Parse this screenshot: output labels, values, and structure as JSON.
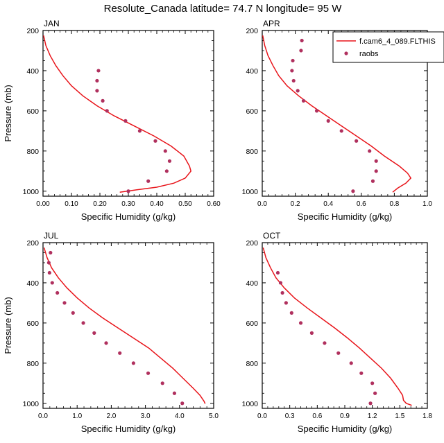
{
  "figure": {
    "title": "Resolute_Canada  latitude= 74.7 N longitude= 95 W"
  },
  "chart_data": [
    {
      "type": "line",
      "panel_label": "JAN",
      "xlabel": "Specific Humidity (g/kg)",
      "ylabel": "Pressure (mb)",
      "xlim": [
        0,
        0.6
      ],
      "ylim": [
        200,
        1025
      ],
      "y_inverted": true,
      "xticks": [
        "0.00",
        "0.10",
        "0.20",
        "0.30",
        "0.40",
        "0.50",
        "0.60"
      ],
      "yticks": [
        "200",
        "400",
        "600",
        "800",
        "1000"
      ],
      "legend": null,
      "series": [
        {
          "name": "f.cam6_4_089.FLTHIST",
          "kind": "line",
          "color": "#e8141a",
          "points": [
            [
              0.002,
              225
            ],
            [
              0.01,
              275
            ],
            [
              0.025,
              325
            ],
            [
              0.045,
              375
            ],
            [
              0.07,
              425
            ],
            [
              0.1,
              475
            ],
            [
              0.14,
              525
            ],
            [
              0.19,
              575
            ],
            [
              0.25,
              625
            ],
            [
              0.32,
              675
            ],
            [
              0.39,
              725
            ],
            [
              0.45,
              775
            ],
            [
              0.495,
              825
            ],
            [
              0.515,
              875
            ],
            [
              0.52,
              900
            ],
            [
              0.5,
              935
            ],
            [
              0.46,
              960
            ],
            [
              0.4,
              980
            ],
            [
              0.33,
              993
            ],
            [
              0.27,
              1005
            ]
          ]
        },
        {
          "name": "raobs",
          "kind": "scatter",
          "color": "#b0305e",
          "points": [
            [
              0.195,
              400
            ],
            [
              0.19,
              450
            ],
            [
              0.19,
              500
            ],
            [
              0.21,
              550
            ],
            [
              0.225,
              600
            ],
            [
              0.29,
              650
            ],
            [
              0.34,
              700
            ],
            [
              0.395,
              750
            ],
            [
              0.43,
              800
            ],
            [
              0.445,
              850
            ],
            [
              0.435,
              900
            ],
            [
              0.37,
              950
            ],
            [
              0.3,
              1000
            ]
          ]
        }
      ]
    },
    {
      "type": "line",
      "panel_label": "APR",
      "xlabel": "Specific Humidity (g/kg)",
      "ylabel": "",
      "xlim": [
        0,
        1.0
      ],
      "ylim": [
        200,
        1025
      ],
      "y_inverted": true,
      "xticks": [
        "0.0",
        "0.2",
        "0.4",
        "0.6",
        "0.8",
        "1.0"
      ],
      "yticks": [
        "200",
        "400",
        "600",
        "800",
        "1000"
      ],
      "legend": {
        "entries": [
          "f.cam6_4_089.FLTHIS",
          "raobs"
        ]
      },
      "series": [
        {
          "name": "f.cam6_4_089.FLTHIST",
          "kind": "line",
          "color": "#e8141a",
          "points": [
            [
              0.003,
              225
            ],
            [
              0.015,
              275
            ],
            [
              0.035,
              325
            ],
            [
              0.065,
              375
            ],
            [
              0.1,
              425
            ],
            [
              0.15,
              475
            ],
            [
              0.22,
              525
            ],
            [
              0.3,
              575
            ],
            [
              0.39,
              625
            ],
            [
              0.48,
              675
            ],
            [
              0.57,
              725
            ],
            [
              0.66,
              775
            ],
            [
              0.74,
              825
            ],
            [
              0.83,
              875
            ],
            [
              0.88,
              910
            ],
            [
              0.9,
              935
            ],
            [
              0.87,
              960
            ],
            [
              0.82,
              985
            ],
            [
              0.79,
              1005
            ]
          ]
        },
        {
          "name": "raobs",
          "kind": "scatter",
          "color": "#b0305e",
          "points": [
            [
              0.24,
              250
            ],
            [
              0.235,
              300
            ],
            [
              0.185,
              350
            ],
            [
              0.18,
              400
            ],
            [
              0.19,
              450
            ],
            [
              0.215,
              500
            ],
            [
              0.25,
              550
            ],
            [
              0.33,
              600
            ],
            [
              0.4,
              650
            ],
            [
              0.48,
              700
            ],
            [
              0.57,
              750
            ],
            [
              0.65,
              800
            ],
            [
              0.69,
              850
            ],
            [
              0.69,
              900
            ],
            [
              0.67,
              950
            ],
            [
              0.55,
              1000
            ]
          ]
        }
      ]
    },
    {
      "type": "line",
      "panel_label": "JUL",
      "xlabel": "Specific Humidity (g/kg)",
      "ylabel": "Pressure (mb)",
      "xlim": [
        0,
        5.0
      ],
      "ylim": [
        200,
        1025
      ],
      "y_inverted": true,
      "xticks": [
        "0.0",
        "1.0",
        "2.0",
        "3.0",
        "4.0",
        "5.0"
      ],
      "yticks": [
        "200",
        "400",
        "600",
        "800",
        "1000"
      ],
      "legend": null,
      "series": [
        {
          "name": "f.cam6_4_089.FLTHIST",
          "kind": "line",
          "color": "#e8141a",
          "points": [
            [
              0.03,
              225
            ],
            [
              0.12,
              275
            ],
            [
              0.25,
              325
            ],
            [
              0.45,
              375
            ],
            [
              0.7,
              425
            ],
            [
              1.0,
              475
            ],
            [
              1.35,
              525
            ],
            [
              1.75,
              575
            ],
            [
              2.2,
              625
            ],
            [
              2.65,
              675
            ],
            [
              3.1,
              725
            ],
            [
              3.45,
              775
            ],
            [
              3.8,
              825
            ],
            [
              4.1,
              875
            ],
            [
              4.4,
              925
            ],
            [
              4.6,
              960
            ],
            [
              4.72,
              990
            ],
            [
              4.75,
              1002
            ]
          ]
        },
        {
          "name": "raobs",
          "kind": "scatter",
          "color": "#b0305e",
          "points": [
            [
              0.22,
              250
            ],
            [
              0.17,
              300
            ],
            [
              0.19,
              350
            ],
            [
              0.27,
              400
            ],
            [
              0.42,
              450
            ],
            [
              0.63,
              500
            ],
            [
              0.88,
              550
            ],
            [
              1.18,
              600
            ],
            [
              1.5,
              650
            ],
            [
              1.85,
              700
            ],
            [
              2.25,
              750
            ],
            [
              2.65,
              800
            ],
            [
              3.08,
              850
            ],
            [
              3.5,
              900
            ],
            [
              3.85,
              950
            ],
            [
              4.08,
              1000
            ]
          ]
        }
      ]
    },
    {
      "type": "line",
      "panel_label": "OCT",
      "xlabel": "Specific Humidity (g/kg)",
      "ylabel": "",
      "xlim": [
        0,
        1.8
      ],
      "ylim": [
        200,
        1025
      ],
      "y_inverted": true,
      "xticks": [
        "0.0",
        "0.3",
        "0.6",
        "0.9",
        "1.2",
        "1.5",
        "1.8"
      ],
      "yticks": [
        "200",
        "400",
        "600",
        "800",
        "1000"
      ],
      "legend": null,
      "series": [
        {
          "name": "f.cam6_4_089.FLTHIST",
          "kind": "line",
          "color": "#e8141a",
          "points": [
            [
              0.01,
              225
            ],
            [
              0.04,
              275
            ],
            [
              0.09,
              325
            ],
            [
              0.15,
              375
            ],
            [
              0.24,
              425
            ],
            [
              0.35,
              475
            ],
            [
              0.49,
              525
            ],
            [
              0.64,
              575
            ],
            [
              0.79,
              625
            ],
            [
              0.93,
              675
            ],
            [
              1.06,
              725
            ],
            [
              1.18,
              775
            ],
            [
              1.3,
              825
            ],
            [
              1.4,
              875
            ],
            [
              1.48,
              925
            ],
            [
              1.53,
              960
            ],
            [
              1.54,
              985
            ],
            [
              1.57,
              1000
            ],
            [
              1.63,
              1010
            ]
          ]
        },
        {
          "name": "raobs",
          "kind": "scatter",
          "color": "#b0305e",
          "points": [
            [
              0.17,
              350
            ],
            [
              0.2,
              400
            ],
            [
              0.22,
              450
            ],
            [
              0.26,
              500
            ],
            [
              0.32,
              550
            ],
            [
              0.42,
              600
            ],
            [
              0.54,
              650
            ],
            [
              0.68,
              700
            ],
            [
              0.83,
              750
            ],
            [
              0.97,
              800
            ],
            [
              1.08,
              850
            ],
            [
              1.2,
              900
            ],
            [
              1.23,
              950
            ],
            [
              1.18,
              1000
            ]
          ]
        }
      ]
    }
  ]
}
